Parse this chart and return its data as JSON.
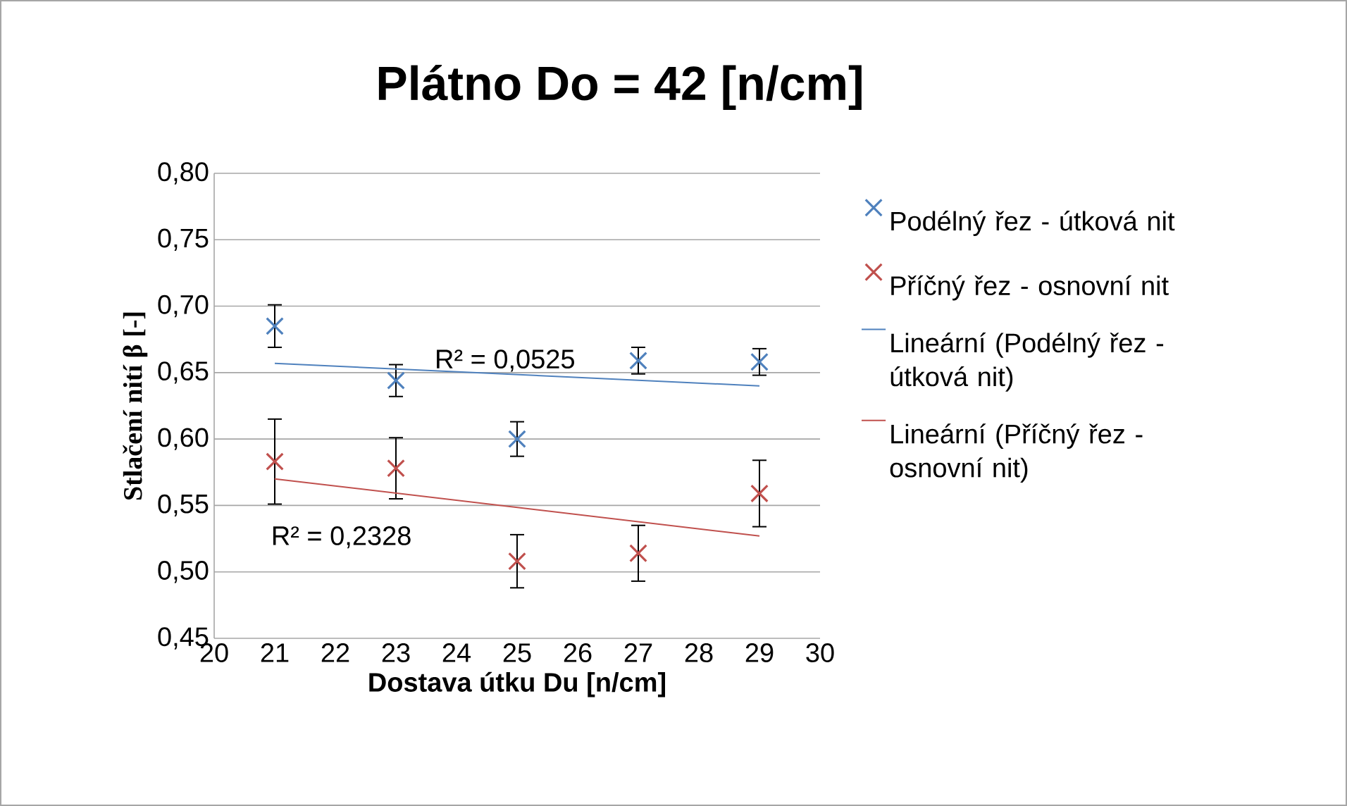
{
  "chart_data": {
    "type": "scatter",
    "title": "Plátno Do = 42 [n/cm]",
    "xlabel": "Dostava útku Du [n/cm]",
    "ylabel": "Stlačení nití β [-]",
    "xlim": [
      20,
      30
    ],
    "xticks": [
      20,
      21,
      22,
      23,
      24,
      25,
      26,
      27,
      28,
      29,
      30
    ],
    "ylim": [
      0.45,
      0.8
    ],
    "yticks": [
      {
        "value": 0.45,
        "label": "0,45"
      },
      {
        "value": 0.5,
        "label": "0,50"
      },
      {
        "value": 0.55,
        "label": "0,55"
      },
      {
        "value": 0.6,
        "label": "0,60"
      },
      {
        "value": 0.65,
        "label": "0,65"
      },
      {
        "value": 0.7,
        "label": "0,70"
      },
      {
        "value": 0.75,
        "label": "0,75"
      },
      {
        "value": 0.8,
        "label": "0,80"
      }
    ],
    "grid": "y",
    "legend": "right",
    "series": [
      {
        "name": "Podélný řez - útková nit",
        "marker": "cross",
        "color": "#4f81bd",
        "x": [
          21,
          23,
          25,
          27,
          29
        ],
        "values": [
          0.685,
          0.644,
          0.6,
          0.659,
          0.658
        ],
        "errors": [
          0.016,
          0.012,
          0.013,
          0.01,
          0.01
        ]
      },
      {
        "name": "Příčný řez - osnovní nit",
        "marker": "cross",
        "color": "#c0504d",
        "x": [
          21,
          23,
          25,
          27,
          29
        ],
        "values": [
          0.583,
          0.578,
          0.508,
          0.514,
          0.559
        ],
        "errors": [
          0.032,
          0.023,
          0.02,
          0.021,
          0.025
        ]
      },
      {
        "name": "Lineární (Podélný řez - útková nit)",
        "type": "line",
        "color": "#4f81bd",
        "x": [
          21,
          29
        ],
        "values": [
          0.657,
          0.64
        ]
      },
      {
        "name": "Lineární (Příčný řez - osnovní nit)",
        "type": "line",
        "color": "#c0504d",
        "x": [
          21,
          29
        ],
        "values": [
          0.57,
          0.527
        ]
      }
    ],
    "annotations": [
      "R² = 0,0525",
      "R² = 0,2328"
    ]
  }
}
